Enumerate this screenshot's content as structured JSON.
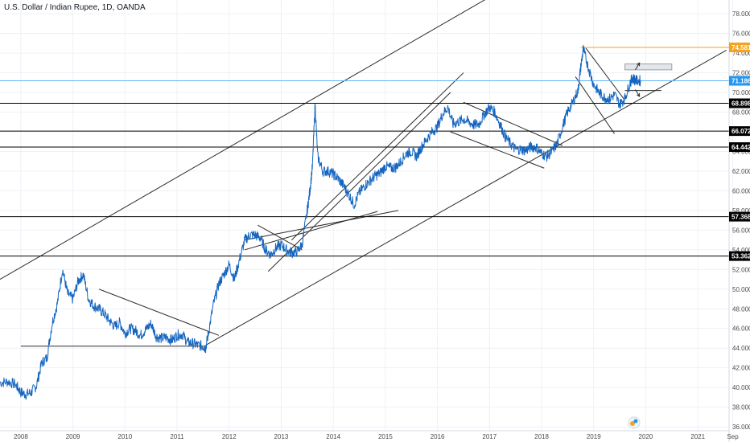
{
  "header": {
    "title": "U.S. Dollar / Indian Rupee, 1D, OANDA"
  },
  "colors": {
    "price": "#1565c0",
    "last_price": "#2196f3",
    "last_price_line": "#64b5f6",
    "resistance": "#f7a21b",
    "level": "#000000",
    "trend": "#2a2a2a",
    "grid": "#eef1f5"
  },
  "chart_data": {
    "type": "line",
    "title": "U.S. Dollar / Indian Rupee, 1D, OANDA",
    "xlabel": "",
    "ylabel": "",
    "xlim": [
      2007.6,
      2021.6
    ],
    "ylim": [
      35.6,
      79.4
    ],
    "grid": true,
    "y_ticks": [
      "36.000",
      "38.000",
      "40.000",
      "42.000",
      "44.000",
      "46.000",
      "48.000",
      "50.000",
      "52.000",
      "54.000",
      "56.000",
      "58.000",
      "60.000",
      "62.000",
      "64.000",
      "66.000",
      "68.000",
      "70.000",
      "72.000",
      "74.000",
      "76.000",
      "78.000"
    ],
    "y_tick_values": [
      36,
      38,
      40,
      42,
      44,
      46,
      48,
      50,
      52,
      54,
      56,
      58,
      60,
      62,
      64,
      66,
      68,
      70,
      72,
      74,
      76,
      78
    ],
    "x_ticks": [
      "2008",
      "2009",
      "2010",
      "2011",
      "2012",
      "2013",
      "2014",
      "2015",
      "2016",
      "2017",
      "2018",
      "2019",
      "2020",
      "2021",
      "Sep"
    ],
    "x_tick_values": [
      2008.0,
      2009.0,
      2010.0,
      2011.0,
      2012.0,
      2013.0,
      2014.0,
      2015.0,
      2016.0,
      2017.0,
      2018.0,
      2019.0,
      2020.0,
      2021.0,
      2021.67
    ],
    "series": [
      {
        "x": [
          2007.6,
          2007.75,
          2007.9,
          2008.0,
          2008.1,
          2008.2,
          2008.3,
          2008.4,
          2008.5,
          2008.6,
          2008.7,
          2008.8,
          2008.9,
          2009.0,
          2009.1,
          2009.2,
          2009.3,
          2009.4,
          2009.5,
          2009.6,
          2009.7,
          2009.8,
          2009.9,
          2010.0,
          2010.1,
          2010.2,
          2010.3,
          2010.4,
          2010.5,
          2010.6,
          2010.7,
          2010.8,
          2010.9,
          2011.0,
          2011.1,
          2011.2,
          2011.3,
          2011.4,
          2011.5,
          2011.55,
          2011.6,
          2011.7,
          2011.8,
          2011.9,
          2012.0,
          2012.1,
          2012.2,
          2012.3,
          2012.4,
          2012.5,
          2012.6,
          2012.7,
          2012.8,
          2012.9,
          2013.0,
          2013.1,
          2013.2,
          2013.3,
          2013.4,
          2013.5,
          2013.55,
          2013.6,
          2013.65,
          2013.7,
          2013.8,
          2013.9,
          2014.0,
          2014.1,
          2014.2,
          2014.3,
          2014.4,
          2014.5,
          2014.6,
          2014.7,
          2014.8,
          2014.9,
          2015.0,
          2015.1,
          2015.2,
          2015.3,
          2015.4,
          2015.5,
          2015.6,
          2015.7,
          2015.8,
          2015.9,
          2016.0,
          2016.1,
          2016.2,
          2016.3,
          2016.4,
          2016.5,
          2016.6,
          2016.7,
          2016.8,
          2016.9,
          2017.0,
          2017.1,
          2017.2,
          2017.3,
          2017.4,
          2017.5,
          2017.6,
          2017.7,
          2017.8,
          2017.9,
          2018.0,
          2018.1,
          2018.2,
          2018.3,
          2018.4,
          2018.5,
          2018.6,
          2018.7,
          2018.75,
          2018.8,
          2018.9,
          2019.0,
          2019.1,
          2019.2,
          2019.3,
          2019.4,
          2019.5,
          2019.6,
          2019.7,
          2019.75,
          2019.8,
          2019.9
        ],
        "values": [
          40.5,
          40.6,
          40.3,
          39.5,
          39.3,
          39.5,
          40.2,
          42.5,
          43.0,
          46.5,
          48.5,
          52.0,
          49.5,
          49.0,
          50.8,
          51.5,
          49.0,
          48.3,
          48.0,
          47.5,
          46.8,
          46.2,
          46.6,
          45.5,
          46.0,
          45.8,
          45.3,
          45.9,
          46.5,
          45.2,
          45.0,
          45.1,
          44.8,
          45.3,
          45.4,
          44.6,
          44.5,
          44.3,
          44.2,
          44.0,
          45.5,
          48.5,
          50.5,
          51.5,
          52.5,
          51.0,
          53.0,
          55.0,
          55.5,
          55.5,
          55.2,
          54.0,
          53.5,
          54.2,
          54.5,
          54.0,
          53.7,
          53.8,
          54.5,
          58.0,
          60.0,
          62.5,
          68.8,
          63.5,
          62.0,
          62.0,
          61.7,
          61.2,
          60.5,
          59.6,
          58.6,
          59.8,
          60.5,
          61.0,
          61.5,
          61.8,
          62.5,
          62.3,
          62.4,
          63.0,
          63.8,
          64.0,
          63.5,
          64.5,
          65.3,
          66.0,
          66.5,
          67.8,
          68.5,
          66.8,
          67.0,
          67.3,
          67.0,
          66.7,
          66.8,
          67.8,
          68.5,
          68.0,
          66.8,
          65.5,
          64.8,
          64.2,
          64.2,
          64.1,
          64.5,
          64.4,
          63.8,
          63.5,
          64.0,
          64.8,
          66.5,
          68.0,
          69.0,
          70.2,
          72.5,
          74.4,
          72.5,
          70.8,
          70.0,
          69.5,
          69.3,
          69.8,
          68.8,
          69.4,
          71.0,
          71.5,
          71.2,
          71.2
        ]
      }
    ],
    "tagged_levels": [
      {
        "label": "74.581",
        "value": 74.581,
        "style": "resistance"
      },
      {
        "label": "71.186",
        "value": 71.186,
        "style": "last"
      },
      {
        "label": "68.898",
        "value": 68.898,
        "style": "level"
      },
      {
        "label": "66.072",
        "value": 66.072,
        "style": "level"
      },
      {
        "label": "64.442",
        "value": 64.442,
        "style": "level"
      },
      {
        "label": "57.368",
        "value": 57.368,
        "style": "level"
      },
      {
        "label": "53.362",
        "value": 53.362,
        "style": "level"
      }
    ],
    "trend_lines": [
      {
        "x": [
          2007.6,
          2017.1
        ],
        "y": [
          51.0,
          80.0
        ]
      },
      {
        "x": [
          2011.55,
          2021.55
        ],
        "y": [
          44.3,
          74.3
        ]
      },
      {
        "x": [
          2008.0,
          2011.55
        ],
        "y": [
          44.2,
          44.2
        ]
      },
      {
        "x": [
          2009.5,
          2011.8
        ],
        "y": [
          50.0,
          45.3
        ]
      },
      {
        "x": [
          2012.3,
          2014.85
        ],
        "y": [
          54.0,
          57.9
        ]
      },
      {
        "x": [
          2012.3,
          2015.25
        ],
        "y": [
          55.0,
          58.0
        ]
      },
      {
        "x": [
          2012.55,
          2013.4
        ],
        "y": [
          56.5,
          54.0
        ]
      },
      {
        "x": [
          2012.75,
          2016.25
        ],
        "y": [
          51.8,
          70.0
        ]
      },
      {
        "x": [
          2013.2,
          2016.5
        ],
        "y": [
          55.0,
          72.0
        ]
      },
      {
        "x": [
          2016.25,
          2018.05
        ],
        "y": [
          66.0,
          62.3
        ]
      },
      {
        "x": [
          2016.5,
          2018.4
        ],
        "y": [
          69.0,
          64.6
        ]
      },
      {
        "x": [
          2018.85,
          2019.6
        ],
        "y": [
          74.5,
          69.2
        ]
      },
      {
        "x": [
          2018.65,
          2019.4
        ],
        "y": [
          71.6,
          65.8
        ]
      },
      {
        "x": [
          2019.6,
          2020.3
        ],
        "y": [
          70.2,
          70.2
        ]
      }
    ],
    "rect_zone": {
      "x": [
        2019.6,
        2020.5
      ],
      "y": [
        72.3,
        72.9
      ]
    },
    "arrows": [
      {
        "from": [
          2019.8,
          72.3
        ],
        "to": [
          2019.88,
          73.0
        ]
      },
      {
        "from": [
          2019.8,
          70.3
        ],
        "to": [
          2019.88,
          69.6
        ]
      }
    ]
  }
}
